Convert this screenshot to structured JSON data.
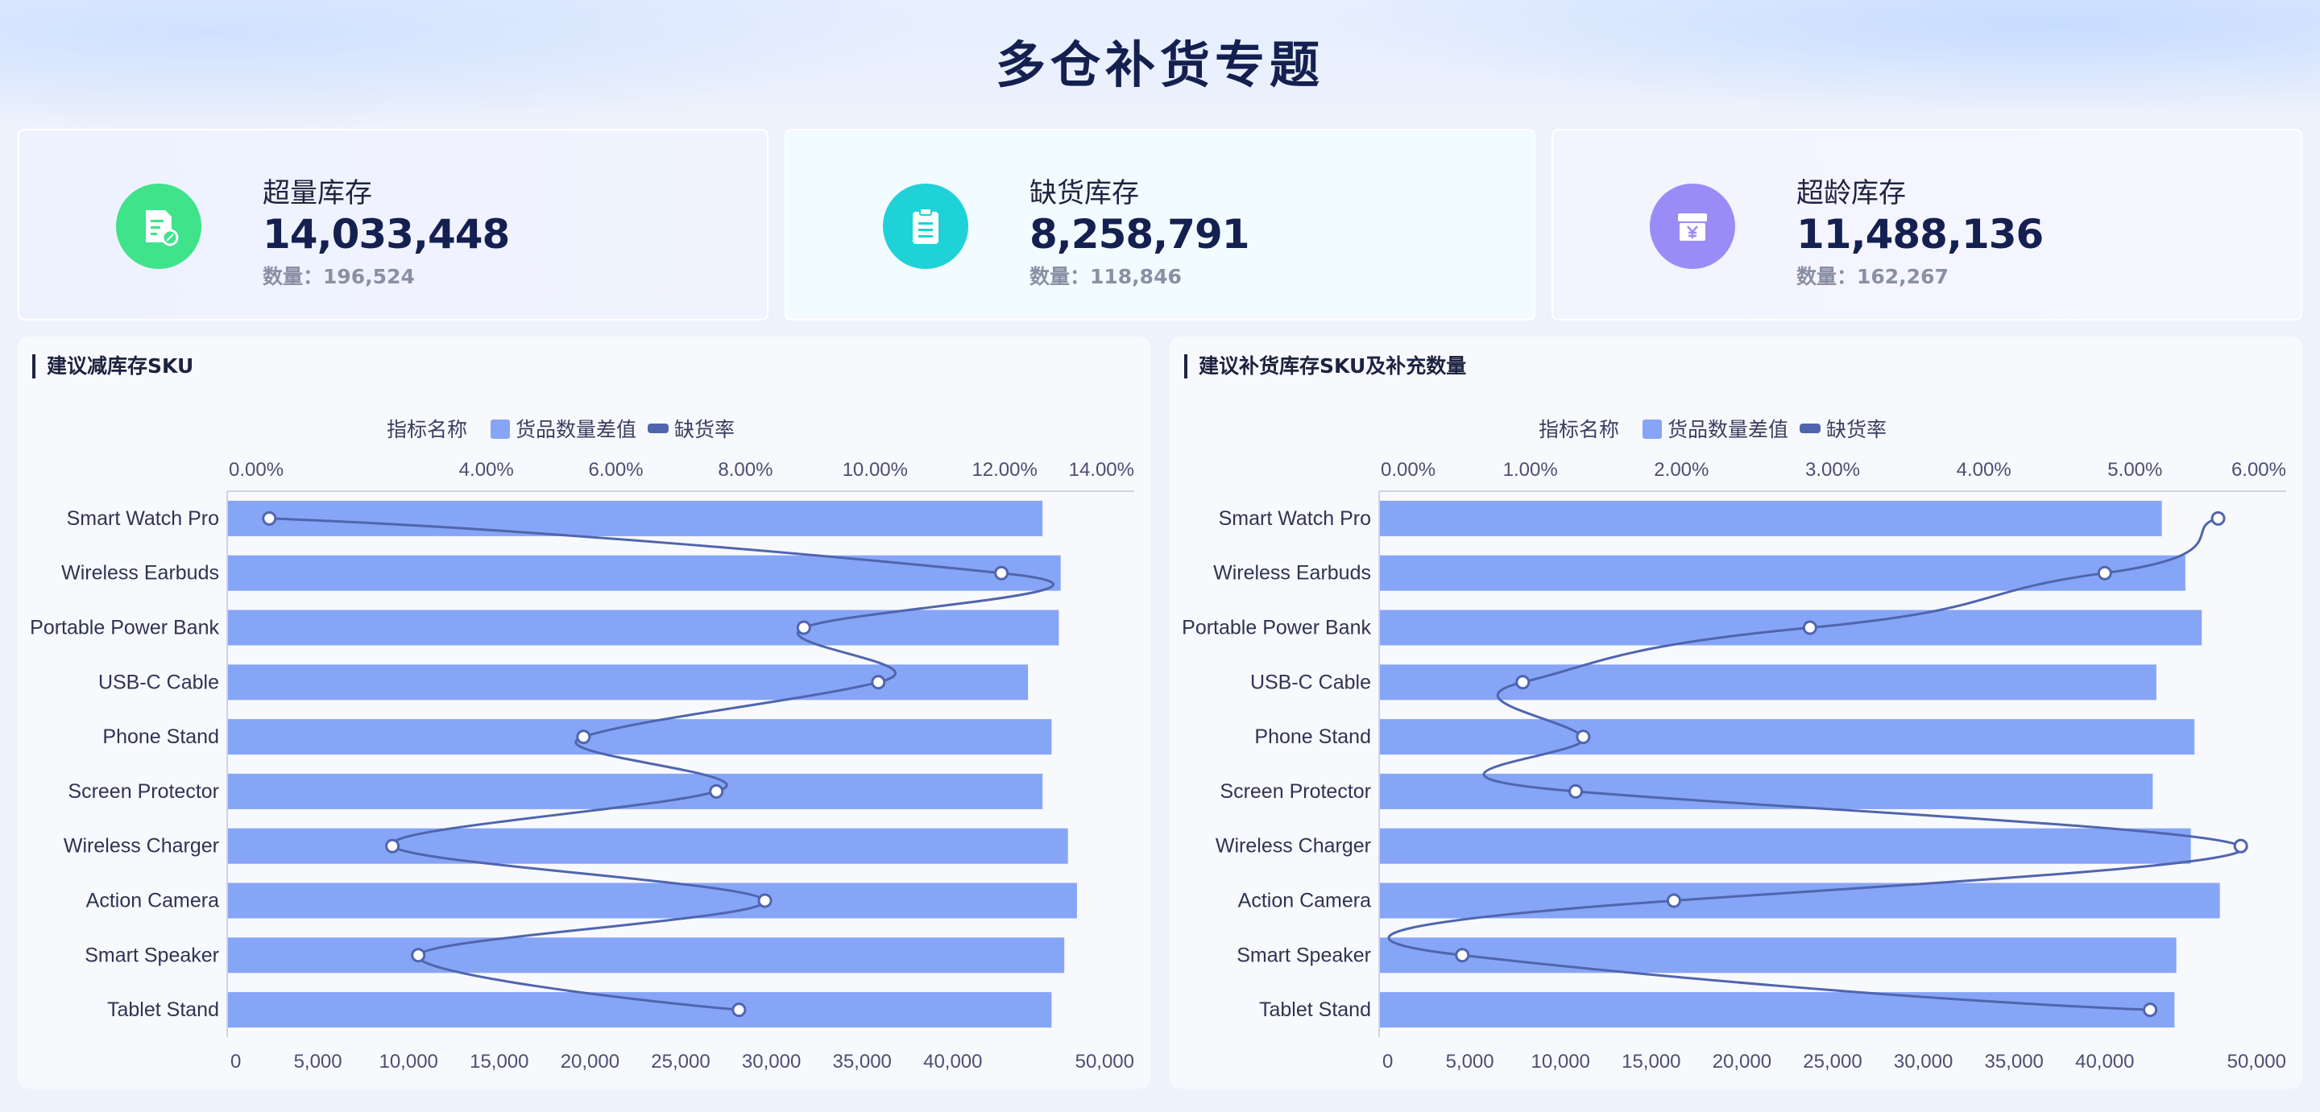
{
  "title": "多仓补货专题",
  "kpis": [
    {
      "label": "超量库存",
      "value": "14,033,448",
      "sub": "数量：196,524",
      "icon": "discount-receipt-icon",
      "color": "#3ee38a"
    },
    {
      "label": "缺货库存",
      "value": "8,258,791",
      "sub": "数量：118,846",
      "icon": "clipboard-icon",
      "color": "#1fd2d8"
    },
    {
      "label": "超龄库存",
      "value": "11,488,136",
      "sub": "数量：162,267",
      "icon": "yen-wallet-icon",
      "color": "#9a8cf6"
    }
  ],
  "panels": [
    {
      "title": "建议减库存SKU",
      "legend_title": "指标名称",
      "legend_bar": "货品数量差值",
      "legend_line": "缺货率"
    },
    {
      "title": "建议补货库存SKU及补充数量",
      "legend_title": "指标名称",
      "legend_bar": "货品数量差值",
      "legend_line": "缺货率"
    }
  ],
  "colors": {
    "bar": "#87a5f7",
    "line": "#4f65ad",
    "title": "#142050"
  },
  "chart_data": [
    {
      "type": "bar",
      "orientation": "horizontal",
      "title": "建议减库存SKU",
      "categories": [
        "Smart Watch Pro",
        "Wireless Earbuds",
        "Portable Power Bank",
        "USB-C Cable",
        "Phone Stand",
        "Screen Protector",
        "Wireless Charger",
        "Action Camera",
        "Smart Speaker",
        "Tablet Stand"
      ],
      "series": [
        {
          "name": "货品数量差值",
          "axis": "bottom",
          "values": [
            44900,
            45900,
            45800,
            44100,
            45400,
            44900,
            46300,
            46800,
            46100,
            45400
          ]
        },
        {
          "name": "缺货率",
          "axis": "top",
          "type": "line",
          "values": [
            0.0065,
            0.1195,
            0.089,
            0.1005,
            0.055,
            0.0755,
            0.0255,
            0.083,
            0.0295,
            0.079
          ]
        }
      ],
      "bottom_axis": {
        "ticks": [
          "0",
          "5,000",
          "10,000",
          "15,000",
          "20,000",
          "25,000",
          "30,000",
          "35,000",
          "40,000",
          "50,000"
        ],
        "range": [
          0,
          50000
        ]
      },
      "top_axis": {
        "ticks": [
          "0.00%",
          "4.00%",
          "6.00%",
          "8.00%",
          "10.00%",
          "12.00%",
          "14.00%"
        ],
        "range": [
          0,
          0.14
        ]
      }
    },
    {
      "type": "bar",
      "orientation": "horizontal",
      "title": "建议补货库存SKU及补充数量",
      "categories": [
        "Smart Watch Pro",
        "Wireless Earbuds",
        "Portable Power Bank",
        "USB-C Cable",
        "Phone Stand",
        "Screen Protector",
        "Wireless Charger",
        "Action Camera",
        "Smart Speaker",
        "Tablet Stand"
      ],
      "series": [
        {
          "name": "货品数量差值",
          "axis": "bottom",
          "values": [
            43100,
            44400,
            45300,
            42800,
            44900,
            42600,
            44700,
            46300,
            43900,
            43800
          ]
        },
        {
          "name": "缺货率",
          "axis": "top",
          "type": "line",
          "values": [
            0.0555,
            0.048,
            0.0285,
            0.0095,
            0.0135,
            0.013,
            0.057,
            0.0195,
            0.0055,
            0.051
          ]
        }
      ],
      "bottom_axis": {
        "ticks": [
          "0",
          "5,000",
          "10,000",
          "15,000",
          "20,000",
          "25,000",
          "30,000",
          "35,000",
          "40,000",
          "50,000"
        ],
        "range": [
          0,
          50000
        ]
      },
      "top_axis": {
        "ticks": [
          "0.00%",
          "1.00%",
          "2.00%",
          "3.00%",
          "4.00%",
          "5.00%",
          "6.00%"
        ],
        "range": [
          0,
          0.06
        ]
      }
    }
  ]
}
